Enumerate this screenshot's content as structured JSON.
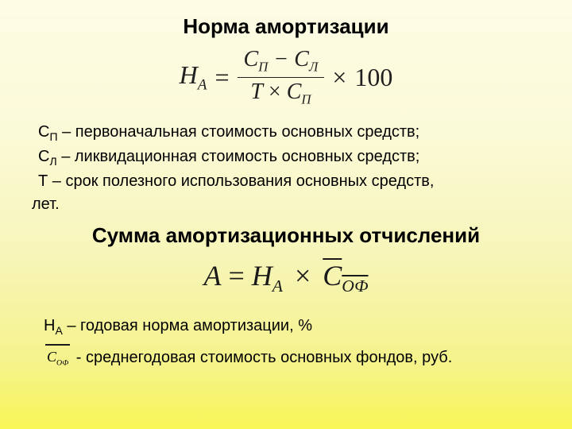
{
  "title": "Норма амортизации",
  "formula1": {
    "lhs_var": "Н",
    "lhs_sub": "А",
    "eq": "=",
    "num_a": "С",
    "num_a_sub": "П",
    "minus": "−",
    "num_b": "С",
    "num_b_sub": "Л",
    "den_a": "Т",
    "times": "×",
    "den_b": "С",
    "den_b_sub": "П",
    "tail": "×",
    "hundred": "100"
  },
  "defs1": [
    {
      "sym": "С",
      "sub": "П",
      "text": " – первоначальная стоимость основных средств;"
    },
    {
      "sym": "С",
      "sub": "Л",
      "text": " – ликвидационная стоимость основных средств;"
    },
    {
      "sym": "Т",
      "sub": "",
      "text": "  –  срок  полезного  использования  основных  средств,"
    }
  ],
  "defs1_tail": "лет.",
  "subtitle": "Сумма амортизационных отчислений",
  "formula2": {
    "lhs": "А",
    "eq": "=",
    "a": "Н",
    "a_sub": "А",
    "times": "×",
    "b": "С",
    "b_sub": "ОФ"
  },
  "defs2": [
    {
      "sym": "Н",
      "sub": "А",
      "text": " – годовая норма амортизации, %"
    }
  ],
  "defs2_formula": {
    "var": "С",
    "sub": "ОФ",
    "text": " - среднегодовая стоимость основных фондов, руб."
  },
  "colors": {
    "text": "#000000",
    "formula": "#1a1a1a"
  }
}
